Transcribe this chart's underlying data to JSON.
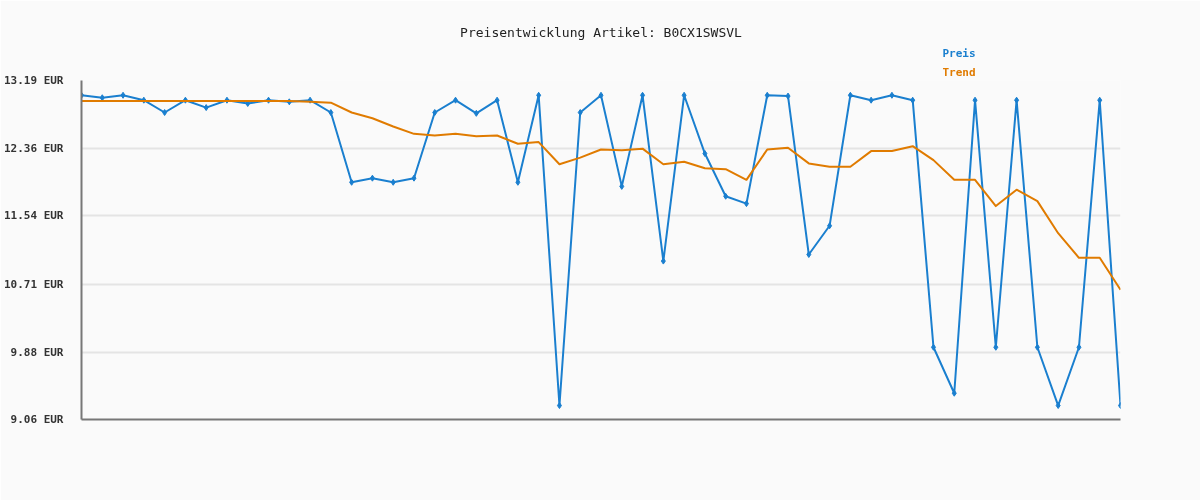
{
  "chart_data": {
    "type": "line",
    "title": "Preisentwicklung Artikel: B0CX1SWSVL",
    "categories": [
      null,
      null,
      null,
      null,
      null,
      null,
      null,
      null,
      null,
      null,
      null,
      null,
      null,
      null,
      null,
      null,
      null,
      null,
      null,
      null,
      null,
      null,
      null,
      null,
      null,
      null,
      null,
      null,
      null,
      null,
      null,
      null,
      null,
      null,
      null,
      null,
      null,
      null,
      null,
      null,
      null,
      null,
      null,
      null,
      null,
      null,
      null,
      null,
      null,
      null,
      null
    ],
    "series": [
      {
        "name": "Preis",
        "color": "#1a7fcf",
        "marker": "diamond",
        "values": [
          13.01,
          12.98,
          13.01,
          12.95,
          12.8,
          12.95,
          12.86,
          12.95,
          12.91,
          12.95,
          12.93,
          12.95,
          12.8,
          11.95,
          12.0,
          11.95,
          12.0,
          12.8,
          12.95,
          12.79,
          12.95,
          11.95,
          13.01,
          9.23,
          12.8,
          13.01,
          11.9,
          13.01,
          10.99,
          13.01,
          12.3,
          11.78,
          11.69,
          13.01,
          13.0,
          11.07,
          11.42,
          13.01,
          12.95,
          13.01,
          12.95,
          9.94,
          9.38,
          12.95,
          9.94,
          12.95,
          9.94,
          9.23,
          9.94,
          12.95,
          9.23
        ]
      },
      {
        "name": "Trend",
        "color": "#e07b00",
        "values": [
          12.94,
          12.94,
          12.94,
          12.94,
          12.94,
          12.94,
          12.94,
          12.94,
          12.94,
          12.94,
          12.94,
          12.93,
          12.92,
          12.8,
          12.73,
          12.63,
          12.54,
          12.52,
          12.54,
          12.51,
          12.52,
          12.42,
          12.44,
          12.17,
          12.25,
          12.35,
          12.34,
          12.36,
          12.17,
          12.2,
          12.12,
          12.11,
          11.98,
          12.35,
          12.37,
          12.18,
          12.14,
          12.14,
          12.33,
          12.33,
          12.39,
          12.22,
          11.98,
          11.98,
          11.66,
          11.86,
          11.72,
          11.33,
          11.03,
          11.03,
          10.64
        ]
      }
    ],
    "ylim": [
      9.06,
      13.19
    ],
    "yticks": [
      {
        "value": 9.06,
        "label": "9.06 EUR"
      },
      {
        "value": 9.88,
        "label": "9.88 EUR"
      },
      {
        "value": 10.71,
        "label": "10.71 EUR"
      },
      {
        "value": 11.54,
        "label": "11.54 EUR"
      },
      {
        "value": 12.36,
        "label": "12.36 EUR"
      },
      {
        "value": 13.19,
        "label": "13.19 EUR"
      }
    ],
    "grid": "y",
    "tick_labels": "y"
  }
}
